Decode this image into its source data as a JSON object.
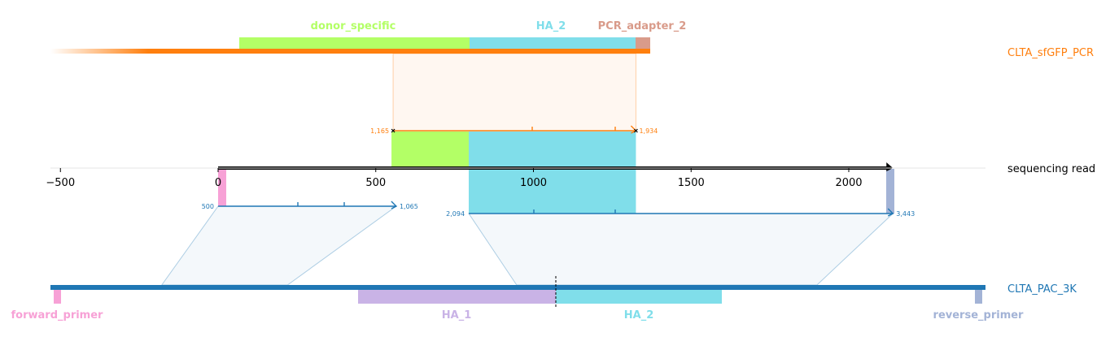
{
  "chart_data": {
    "type": "alignment",
    "colors": {
      "donor_specific": "#b3ff66",
      "HA_2": "#80deea",
      "HA_1": "#c9b3e6",
      "PCR_adapter_2": "#d99b8a",
      "forward_primer": "#f7a1d6",
      "reverse_primer": "#a3b3d6",
      "sfgfp_track": "#ff7f0e",
      "pac_track": "#1f77b4",
      "read_track": "#000000"
    },
    "axis": {
      "ticks": [
        -500,
        0,
        500,
        1000,
        1500,
        2000
      ],
      "tick_labels": [
        "−500",
        "0",
        "500",
        "1000",
        "1500",
        "2000"
      ],
      "xlim": [
        -530,
        2440
      ],
      "read_length": 2140
    },
    "reads": {
      "top": {
        "name": "CLTA_sfGFP_PCR",
        "features": [
          {
            "name": "donor_specific",
            "label": "donor_specific",
            "color": "donor_specific"
          },
          {
            "name": "HA_2",
            "label": "HA_2",
            "color": "HA_2"
          },
          {
            "name": "PCR_adapter_2",
            "label": "PCR_adapter_2",
            "color": "PCR_adapter_2"
          }
        ]
      },
      "middle": {
        "name": "sequencing read"
      },
      "bottom": {
        "name": "CLTA_PAC_3K",
        "features": [
          {
            "name": "forward_primer",
            "label": "forward_primer",
            "color": "forward_primer"
          },
          {
            "name": "HA_1",
            "label": "HA_1",
            "color": "HA_1"
          },
          {
            "name": "HA_2",
            "label": "HA_2",
            "color": "HA_2"
          },
          {
            "name": "reverse_primer",
            "label": "reverse_primer",
            "color": "reverse_primer"
          }
        ]
      }
    },
    "alignments": [
      {
        "target": "top",
        "color": "sfgfp_track",
        "read_start": 555,
        "read_end": 1325,
        "ref_start_label": "1,165",
        "ref_end_label": "1,934",
        "ref_start": 1165,
        "ref_end": 1934
      },
      {
        "target": "bottom",
        "color": "pac_track",
        "read_start": 0,
        "read_end": 565,
        "ref_start_label": "500",
        "ref_end_label": "1,065",
        "ref_start": 500,
        "ref_end": 1065
      },
      {
        "target": "bottom",
        "color": "pac_track",
        "read_start": 795,
        "read_end": 2140,
        "ref_start_label": "2,094",
        "ref_end_label": "3,443",
        "ref_start": 2094,
        "ref_end": 3443
      }
    ]
  }
}
